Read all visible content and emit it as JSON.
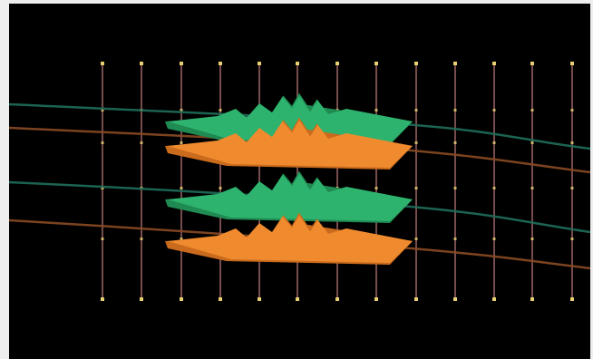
{
  "scene": {
    "description_hidden": "",
    "colors": {
      "background": "#000000",
      "page": "#eeeeee",
      "surface_green": "#2eb36e",
      "surface_green_shade": "#1f8a52",
      "surface_orange": "#f08a2e",
      "surface_orange_shade": "#c96a1c",
      "line_green": "#1f6e5a",
      "line_orange": "#8a4a24",
      "pole": "#b07070",
      "pole_marker": "#e8d070"
    }
  }
}
